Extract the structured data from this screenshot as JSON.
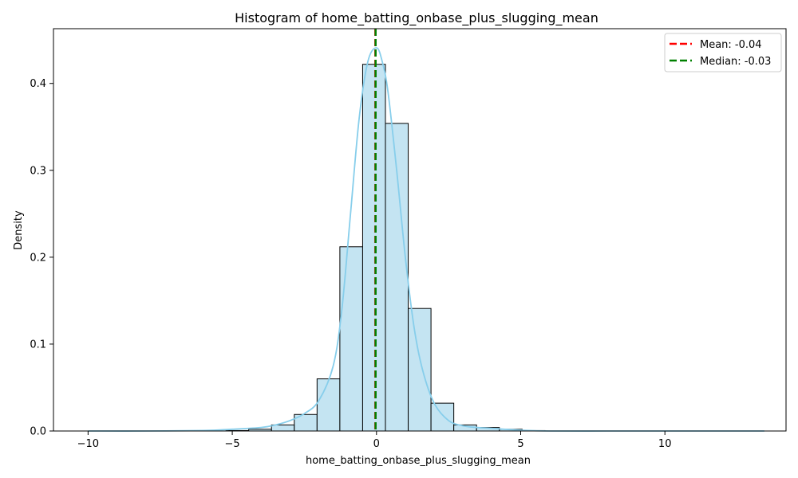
{
  "chart_data": {
    "type": "bar",
    "title": "Histogram of home_batting_onbase_plus_slugging_mean",
    "xlabel": "home_batting_onbase_plus_slugging_mean",
    "ylabel": "Density",
    "xlim": [
      -11.2,
      14.2
    ],
    "ylim": [
      0,
      0.463
    ],
    "xticks": [
      -10,
      -5,
      0,
      5,
      10
    ],
    "xtick_labels": [
      "−10",
      "−5",
      "0",
      "5",
      "10"
    ],
    "yticks": [
      0.0,
      0.1,
      0.2,
      0.3,
      0.4
    ],
    "ytick_labels": [
      "0.0",
      "0.1",
      "0.2",
      "0.3",
      "0.4"
    ],
    "grid": false,
    "legend_position": "top-right",
    "bins": [
      {
        "x0": -9.95,
        "x1": -9.17,
        "value": 0.0
      },
      {
        "x0": -9.17,
        "x1": -8.38,
        "value": 0.0
      },
      {
        "x0": -8.38,
        "x1": -7.59,
        "value": 0.0
      },
      {
        "x0": -7.59,
        "x1": -6.8,
        "value": 0.0
      },
      {
        "x0": -6.8,
        "x1": -6.01,
        "value": 0.0
      },
      {
        "x0": -6.01,
        "x1": -5.22,
        "value": 0.0
      },
      {
        "x0": -5.22,
        "x1": -4.43,
        "value": 0.0005
      },
      {
        "x0": -4.43,
        "x1": -3.64,
        "value": 0.002
      },
      {
        "x0": -3.64,
        "x1": -2.85,
        "value": 0.007
      },
      {
        "x0": -2.85,
        "x1": -2.06,
        "value": 0.019
      },
      {
        "x0": -2.06,
        "x1": -1.27,
        "value": 0.06
      },
      {
        "x0": -1.27,
        "x1": -0.48,
        "value": 0.212
      },
      {
        "x0": -0.48,
        "x1": 0.31,
        "value": 0.422
      },
      {
        "x0": 0.31,
        "x1": 1.1,
        "value": 0.354
      },
      {
        "x0": 1.1,
        "x1": 1.89,
        "value": 0.141
      },
      {
        "x0": 1.89,
        "x1": 2.68,
        "value": 0.032
      },
      {
        "x0": 2.68,
        "x1": 3.47,
        "value": 0.007
      },
      {
        "x0": 3.47,
        "x1": 4.26,
        "value": 0.004
      },
      {
        "x0": 4.26,
        "x1": 5.05,
        "value": 0.002
      },
      {
        "x0": 5.05,
        "x1": 5.84,
        "value": 0.0005
      },
      {
        "x0": 5.84,
        "x1": 6.63,
        "value": 0.0
      },
      {
        "x0": 6.63,
        "x1": 7.42,
        "value": 0.0
      },
      {
        "x0": 7.42,
        "x1": 8.21,
        "value": 0.0
      },
      {
        "x0": 8.21,
        "x1": 9.0,
        "value": 0.0
      },
      {
        "x0": 9.0,
        "x1": 9.79,
        "value": 0.0
      },
      {
        "x0": 9.79,
        "x1": 10.58,
        "value": 0.0
      },
      {
        "x0": 10.58,
        "x1": 11.37,
        "value": 0.0
      },
      {
        "x0": 11.37,
        "x1": 12.16,
        "value": 0.0
      },
      {
        "x0": 12.16,
        "x1": 12.95,
        "value": 0.0
      },
      {
        "x0": 12.95,
        "x1": 13.45,
        "value": 0.0
      }
    ],
    "kde": {
      "x": [
        -10.0,
        -8.0,
        -6.0,
        -5.0,
        -4.0,
        -3.5,
        -3.0,
        -2.5,
        -2.0,
        -1.5,
        -1.2,
        -0.9,
        -0.6,
        -0.3,
        0.0,
        0.2,
        0.4,
        0.7,
        1.0,
        1.3,
        1.6,
        2.0,
        2.5,
        3.0,
        3.5,
        4.0,
        5.0,
        6.0,
        8.0,
        10.0,
        13.45
      ],
      "y": [
        0.0,
        0.0,
        0.0005,
        0.002,
        0.004,
        0.007,
        0.012,
        0.02,
        0.035,
        0.075,
        0.14,
        0.25,
        0.36,
        0.425,
        0.441,
        0.425,
        0.39,
        0.3,
        0.2,
        0.12,
        0.07,
        0.032,
        0.012,
        0.006,
        0.004,
        0.003,
        0.001,
        0.0,
        0.0,
        0.0,
        0.0
      ]
    },
    "lines": [
      {
        "name": "Mean: -0.04",
        "x": -0.04,
        "color": "#ff0000"
      },
      {
        "name": "Median: -0.03",
        "x": -0.03,
        "color": "#008000"
      }
    ],
    "colors": {
      "bar_fill": "#c4e4f2",
      "bar_edge": "#000000",
      "kde": "#87ceeb"
    }
  }
}
